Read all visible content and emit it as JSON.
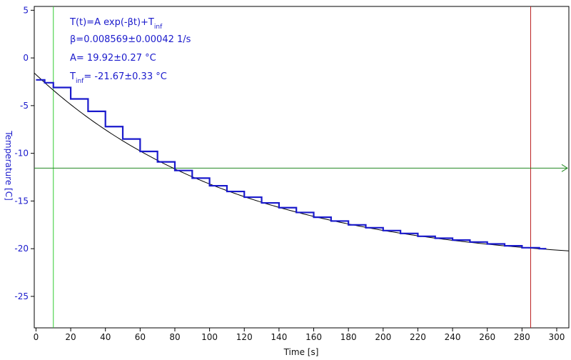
{
  "chart_data": {
    "type": "line",
    "title": "",
    "xlabel": "Time [s]",
    "ylabel": "Temperature [C]",
    "xlim": [
      -1,
      307
    ],
    "ylim": [
      -28.3,
      5.4
    ],
    "x_ticks": [
      0,
      20,
      40,
      60,
      80,
      100,
      120,
      140,
      160,
      180,
      200,
      220,
      240,
      260,
      280,
      300
    ],
    "y_ticks": [
      5,
      0,
      -5,
      -10,
      -15,
      -20,
      -25
    ],
    "grid": false,
    "fit": {
      "model": "T(t)=A exp(-βt)+T",
      "model_sub": "inf",
      "beta_text": "β=0.008569±0.00042 1/s",
      "A_text": "A= 19.92±0.27 °C",
      "tinf_prefix": "T",
      "tinf_sub": "inf",
      "tinf_value": "= -21.67±0.33 °C",
      "A": 19.92,
      "beta": 0.008569,
      "T_inf": -21.67
    },
    "series": [
      {
        "x": [
          0,
          5,
          10,
          20,
          30,
          40,
          50,
          60,
          70,
          80,
          90,
          100,
          110,
          120,
          130,
          140,
          150,
          160,
          170,
          180,
          190,
          200,
          210,
          220,
          230,
          240,
          250,
          260,
          270,
          280,
          290,
          294
        ],
        "y": [
          -2.3,
          -2.6,
          -3.1,
          -4.3,
          -5.6,
          -7.2,
          -8.5,
          -9.8,
          -10.9,
          -11.8,
          -12.6,
          -13.4,
          -14.0,
          -14.6,
          -15.2,
          -15.7,
          -16.2,
          -16.7,
          -17.1,
          -17.5,
          -17.8,
          -18.1,
          -18.4,
          -18.7,
          -18.9,
          -19.1,
          -19.3,
          -19.5,
          -19.7,
          -19.9,
          -20.0,
          -20.0
        ],
        "color": "#1a1acc"
      }
    ],
    "fit_curve_range": [
      -1,
      307
    ],
    "cursor_vertical_green_x": 10,
    "cursor_vertical_red_x": 285,
    "cursor_horizontal_y": -11.55,
    "colors": {
      "data": "#1a1acc",
      "fit": "#000000",
      "green_cursor": "#33cc33",
      "red_cursor": "#bb2222",
      "h_cursor": "#228822",
      "axis": "#000000",
      "y_tick_labels": "#1a1acc",
      "x_tick_labels": "#111111"
    }
  }
}
